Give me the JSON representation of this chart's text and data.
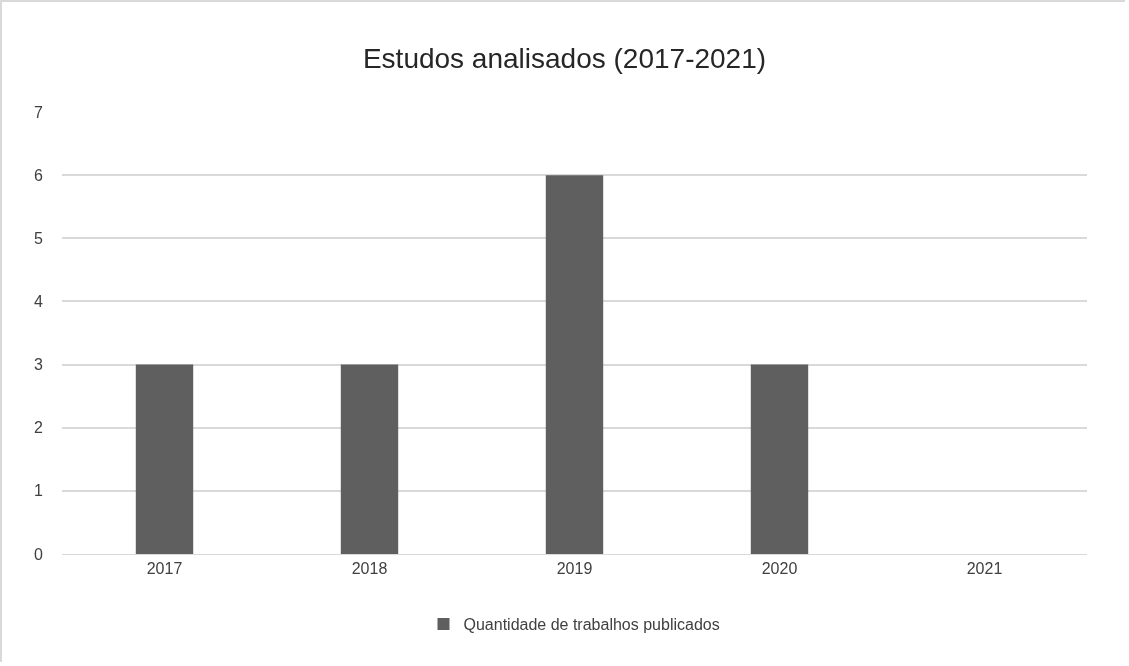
{
  "chart_data": {
    "type": "bar",
    "title": "Estudos analisados (2017-2021)",
    "categories": [
      "2017",
      "2018",
      "2019",
      "2020",
      "2021"
    ],
    "series": [
      {
        "name": "Quantidade de trabalhos publicados",
        "color": "#5f5f5f",
        "values": [
          3,
          3,
          6,
          3,
          0
        ]
      }
    ],
    "ylim": [
      0,
      7
    ],
    "yticks": [
      0,
      1,
      2,
      3,
      4,
      5,
      6,
      7
    ],
    "grid": "y",
    "legend": "bottom"
  }
}
